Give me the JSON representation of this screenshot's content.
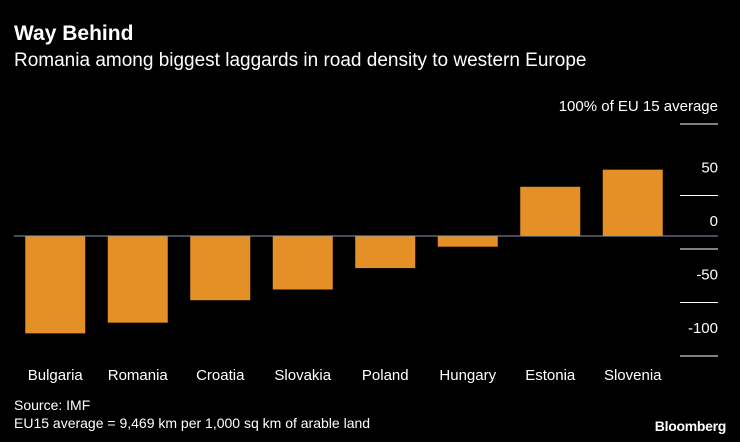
{
  "chart_data": {
    "type": "bar",
    "title": "Way Behind",
    "subtitle": "Romania among biggest laggards in road density to western Europe",
    "ylabel": "100% of EU 15 average",
    "categories": [
      "Bulgaria",
      "Romania",
      "Croatia",
      "Slovakia",
      "Poland",
      "Hungary",
      "Estonia",
      "Slovenia"
    ],
    "values": [
      -91,
      -81,
      -60,
      -50,
      -30,
      -10,
      46,
      62
    ],
    "ylim": [
      -100,
      100
    ],
    "yticks": [
      -100,
      -50,
      0,
      50
    ],
    "ytick_labels": [
      "-100",
      "-50",
      "0",
      "50"
    ],
    "bar_color": "#e49027",
    "source": "Source: IMF",
    "note": "EU15 average = 9,469 km per 1,000 sq km of arable land"
  },
  "brand": "Bloomberg"
}
